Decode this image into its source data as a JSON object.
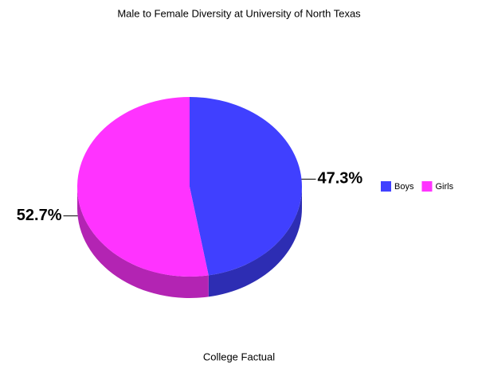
{
  "chart_data": {
    "type": "pie3d",
    "title": "Male to Female Diversity at University of North Texas",
    "source": "College Factual",
    "categories": [
      "Boys",
      "Girls"
    ],
    "values": [
      47.3,
      52.7
    ],
    "value_labels": [
      "47.3%",
      "52.7%"
    ],
    "colors": [
      "#4040ff",
      "#ff33ff"
    ],
    "legend": "right"
  }
}
